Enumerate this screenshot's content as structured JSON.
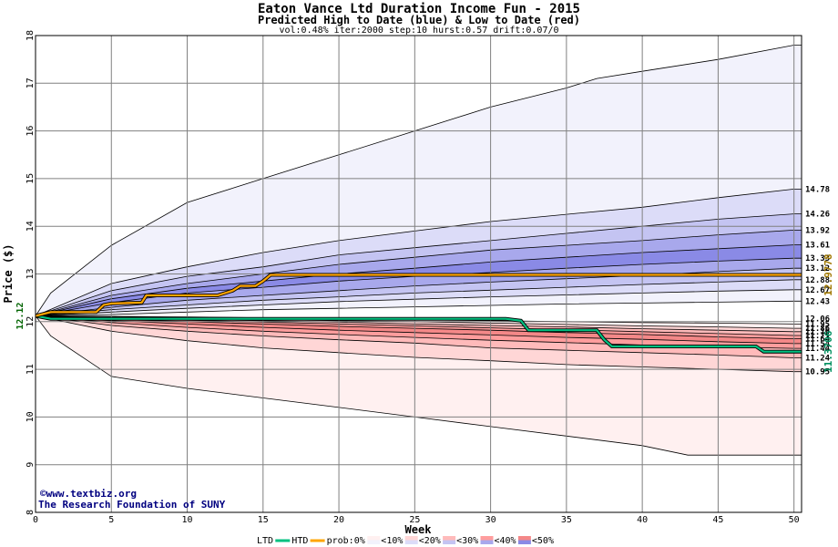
{
  "header": {
    "title": "Eaton Vance Ltd Duration Income Fun - 2015",
    "subtitle": "Predicted High to Date (blue) &  Low to Date (red)",
    "params": "vol:0.48% iter:2000 step:10 hurst:0.57 drift:0.07/0"
  },
  "watermark": {
    "line1": "©www.textbiz.org",
    "line2": "The Research Foundation of SUNY"
  },
  "legend": {
    "items": [
      "LTD",
      "HTD",
      "prob:0%",
      "<10%",
      "<20%",
      "<30%",
      "<40%",
      "<50%"
    ]
  },
  "colors": {
    "htd": "#ffa500",
    "ltd": "#00c080",
    "start_label": "#006400",
    "htd_label": "#a07800",
    "ltd_label": "#009060"
  },
  "chart_data": {
    "type": "area",
    "title": "Eaton Vance Ltd Duration Income Fun - 2015",
    "xlabel": "Week",
    "ylabel": "Price ($)",
    "xlim": [
      0,
      50.5
    ],
    "ylim": [
      8,
      18
    ],
    "x_ticks": [
      0,
      5,
      10,
      15,
      20,
      25,
      30,
      35,
      40,
      45,
      50
    ],
    "y_ticks": [
      8,
      9,
      10,
      11,
      12,
      13,
      14,
      15,
      16,
      17,
      18
    ],
    "grid": true,
    "start_price": 12.12,
    "start_label": "12.12",
    "htd_end_label": "12.9778",
    "ltd_end_label": "11.3706",
    "right_labels": [
      "14.78",
      "14.26",
      "13.92",
      "13.61",
      "13.33",
      "13.12",
      "12.88",
      "12.67",
      "12.43",
      "12.06",
      "11.95",
      "11.86",
      "11.79",
      "11.71",
      "11.64",
      "11.54",
      "11.44",
      "11.24",
      "10.95"
    ],
    "right_label_values": [
      14.78,
      14.26,
      13.92,
      13.61,
      13.33,
      13.12,
      12.88,
      12.67,
      12.43,
      12.06,
      11.95,
      11.86,
      11.79,
      11.71,
      11.64,
      11.54,
      11.44,
      11.24,
      10.95
    ],
    "high_bands": [
      {
        "prob": "0%",
        "x": [
          0,
          1,
          5,
          10,
          13,
          15,
          20,
          25,
          30,
          35,
          37,
          40,
          45,
          50,
          50.5
        ],
        "y": [
          12.12,
          12.6,
          13.6,
          14.5,
          14.8,
          15.0,
          15.5,
          16.0,
          16.5,
          16.9,
          17.1,
          17.25,
          17.5,
          17.8,
          17.8
        ]
      },
      {
        "prob": "<10%",
        "x": [
          0,
          5,
          10,
          15,
          20,
          25,
          30,
          35,
          40,
          45,
          50,
          50.5
        ],
        "y": [
          12.12,
          12.8,
          13.15,
          13.45,
          13.7,
          13.9,
          14.1,
          14.25,
          14.4,
          14.6,
          14.78,
          14.78
        ]
      },
      {
        "prob": "<20%",
        "x": [
          0,
          5,
          10,
          15,
          20,
          25,
          30,
          35,
          40,
          45,
          50,
          50.5
        ],
        "y": [
          12.12,
          12.65,
          12.95,
          13.15,
          13.4,
          13.55,
          13.7,
          13.85,
          14.0,
          14.15,
          14.26,
          14.26
        ]
      },
      {
        "prob": "<30%",
        "x": [
          0,
          5,
          10,
          15,
          20,
          25,
          30,
          35,
          40,
          45,
          50,
          50.5
        ],
        "y": [
          12.12,
          12.55,
          12.8,
          13.0,
          13.2,
          13.35,
          13.5,
          13.6,
          13.7,
          13.82,
          13.92,
          13.92
        ]
      },
      {
        "prob": "<40%",
        "x": [
          0,
          5,
          10,
          15,
          20,
          25,
          30,
          35,
          40,
          45,
          50,
          50.5
        ],
        "y": [
          12.12,
          12.48,
          12.7,
          12.85,
          13.0,
          13.12,
          13.25,
          13.35,
          13.45,
          13.53,
          13.61,
          13.61
        ]
      },
      {
        "prob": "<50%",
        "x": [
          0,
          5,
          10,
          15,
          20,
          25,
          30,
          35,
          40,
          45,
          50,
          50.5
        ],
        "y": [
          12.12,
          12.4,
          12.6,
          12.72,
          12.85,
          12.95,
          13.03,
          13.12,
          13.2,
          13.27,
          13.33,
          13.33
        ]
      },
      {
        "prob": "<40%",
        "x": [
          0,
          5,
          10,
          15,
          20,
          25,
          30,
          35,
          40,
          45,
          50,
          50.5
        ],
        "y": [
          12.12,
          12.3,
          12.45,
          12.55,
          12.65,
          12.75,
          12.83,
          12.9,
          12.97,
          13.05,
          13.12,
          13.12
        ]
      },
      {
        "prob": "<30%",
        "x": [
          0,
          5,
          10,
          15,
          20,
          25,
          30,
          35,
          40,
          45,
          50,
          50.5
        ],
        "y": [
          12.12,
          12.25,
          12.35,
          12.45,
          12.52,
          12.6,
          12.66,
          12.72,
          12.78,
          12.83,
          12.88,
          12.88
        ]
      },
      {
        "prob": "<20%",
        "x": [
          0,
          5,
          10,
          15,
          20,
          25,
          30,
          35,
          40,
          45,
          50,
          50.5
        ],
        "y": [
          12.12,
          12.2,
          12.28,
          12.35,
          12.42,
          12.47,
          12.52,
          12.56,
          12.6,
          12.64,
          12.67,
          12.67
        ]
      },
      {
        "prob": "<10%",
        "x": [
          0,
          5,
          10,
          15,
          20,
          25,
          30,
          35,
          40,
          45,
          50,
          50.5
        ],
        "y": [
          12.12,
          12.15,
          12.2,
          12.25,
          12.28,
          12.31,
          12.34,
          12.37,
          12.39,
          12.41,
          12.43,
          12.43
        ]
      }
    ],
    "low_bands": [
      {
        "prob": "0%",
        "x": [
          0,
          1,
          5,
          10,
          15,
          20,
          25,
          30,
          35,
          40,
          43,
          45,
          50,
          50.5
        ],
        "y": [
          12.12,
          11.7,
          10.85,
          10.6,
          10.4,
          10.2,
          10.0,
          9.8,
          9.6,
          9.4,
          9.2,
          9.2,
          9.2,
          9.2
        ]
      },
      {
        "prob": "<10%",
        "x": [
          0,
          5,
          10,
          15,
          20,
          25,
          30,
          35,
          40,
          45,
          50,
          50.5
        ],
        "y": [
          12.12,
          11.8,
          11.6,
          11.45,
          11.35,
          11.25,
          11.18,
          11.1,
          11.05,
          11.0,
          10.95,
          10.95
        ]
      },
      {
        "prob": "<20%",
        "x": [
          0,
          5,
          10,
          15,
          20,
          25,
          30,
          35,
          40,
          45,
          50,
          50.5
        ],
        "y": [
          12.12,
          11.92,
          11.8,
          11.7,
          11.62,
          11.55,
          11.45,
          11.4,
          11.35,
          11.3,
          11.24,
          11.24
        ]
      },
      {
        "prob": "<30%",
        "x": [
          0,
          5,
          10,
          15,
          20,
          25,
          30,
          35,
          40,
          45,
          50,
          50.5
        ],
        "y": [
          12.12,
          11.98,
          11.88,
          11.8,
          11.73,
          11.67,
          11.61,
          11.56,
          11.51,
          11.47,
          11.44,
          11.44
        ]
      },
      {
        "prob": "<40%",
        "x": [
          0,
          5,
          10,
          15,
          20,
          25,
          30,
          35,
          40,
          45,
          50,
          50.5
        ],
        "y": [
          12.12,
          12.02,
          11.95,
          11.88,
          11.82,
          11.77,
          11.72,
          11.67,
          11.63,
          11.58,
          11.54,
          11.54
        ]
      },
      {
        "prob": "<50%",
        "x": [
          0,
          5,
          10,
          15,
          20,
          25,
          30,
          35,
          40,
          45,
          50,
          50.5
        ],
        "y": [
          12.12,
          12.05,
          12.0,
          11.95,
          11.9,
          11.86,
          11.82,
          11.77,
          11.73,
          11.68,
          11.64,
          11.64
        ]
      },
      {
        "prob": "<40%",
        "x": [
          0,
          5,
          10,
          15,
          20,
          25,
          30,
          35,
          40,
          45,
          50,
          50.5
        ],
        "y": [
          12.12,
          12.07,
          12.03,
          11.99,
          11.95,
          11.91,
          11.87,
          11.83,
          11.79,
          11.75,
          11.71,
          11.71
        ]
      },
      {
        "prob": "<30%",
        "x": [
          0,
          5,
          10,
          15,
          20,
          25,
          30,
          35,
          40,
          45,
          50,
          50.5
        ],
        "y": [
          12.12,
          12.08,
          12.05,
          12.02,
          11.99,
          11.95,
          11.92,
          11.89,
          11.85,
          11.82,
          11.79,
          11.79
        ]
      },
      {
        "prob": "<20%",
        "x": [
          0,
          5,
          10,
          15,
          20,
          25,
          30,
          35,
          40,
          45,
          50,
          50.5
        ],
        "y": [
          12.12,
          12.1,
          12.08,
          12.05,
          12.02,
          12.0,
          11.97,
          11.94,
          11.91,
          11.89,
          11.86,
          11.86
        ]
      },
      {
        "prob": "<10%",
        "x": [
          0,
          5,
          10,
          15,
          20,
          25,
          30,
          35,
          40,
          45,
          50,
          50.5
        ],
        "y": [
          12.12,
          12.11,
          12.1,
          12.08,
          12.06,
          12.04,
          12.02,
          12.0,
          11.98,
          11.97,
          11.95,
          11.95
        ]
      }
    ],
    "htd": {
      "x": [
        0,
        1,
        2,
        4,
        4.5,
        5,
        7,
        7.3,
        9,
        12,
        13,
        13.5,
        14.5,
        15,
        15.5,
        20,
        25,
        30,
        35,
        40,
        45,
        50,
        50.5
      ],
      "y": [
        12.12,
        12.2,
        12.2,
        12.2,
        12.35,
        12.38,
        12.4,
        12.55,
        12.55,
        12.55,
        12.65,
        12.75,
        12.75,
        12.85,
        12.98,
        12.98,
        12.98,
        12.98,
        12.98,
        12.98,
        12.98,
        12.98,
        12.98
      ]
    },
    "ltd": {
      "x": [
        0,
        1,
        5,
        10,
        15,
        20,
        25,
        31,
        32,
        32.5,
        36,
        37,
        37.5,
        38,
        40,
        45,
        47.5,
        48,
        50,
        50.5
      ],
      "y": [
        12.12,
        12.06,
        12.06,
        12.06,
        12.06,
        12.06,
        12.06,
        12.06,
        12.02,
        11.82,
        11.82,
        11.82,
        11.62,
        11.48,
        11.48,
        11.48,
        11.48,
        11.37,
        11.37,
        11.37
      ]
    },
    "ltd_step_color": "#000000"
  }
}
